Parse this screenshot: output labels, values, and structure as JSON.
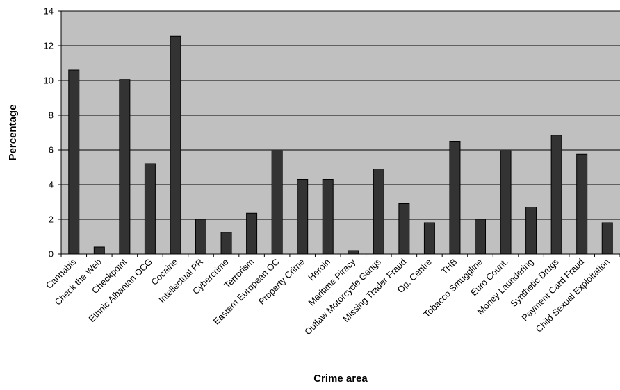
{
  "chart_data": {
    "type": "bar",
    "xlabel": "Crime area",
    "ylabel": "Percentage",
    "ylim": [
      0,
      14
    ],
    "yticks": [
      "0",
      "2",
      "4",
      "6",
      "8",
      "10",
      "12",
      "14"
    ],
    "grid": true,
    "legend": "none",
    "colors": {
      "plot_bg": "#c0c0c0",
      "bar": "#333333",
      "grid": "#000000"
    },
    "categories": [
      "Cannabis",
      "Check the Web",
      "Checkpoint",
      "Ethnic Albanian OCG",
      "Cocaine",
      "Intellectual PR",
      "Cybercrime",
      "Terrorism",
      "Eastern European OC",
      "Property Crime",
      "Heroin",
      "Maritime Piracy",
      "Outlaw Motorcycle Gangs",
      "Missing Trader Fraud",
      "Op. Centre",
      "THB",
      "Tobacco Smuggline",
      "Euro Count.",
      "Money Laundering",
      "Synthetic Drugs",
      "Payment Card Fraud",
      "Child Sexual Exploitation"
    ],
    "values": [
      10.6,
      0.4,
      10.05,
      5.2,
      12.55,
      2.0,
      1.25,
      2.35,
      5.95,
      4.3,
      4.3,
      0.2,
      4.9,
      2.9,
      1.8,
      6.5,
      2.0,
      5.95,
      2.7,
      6.85,
      5.75,
      1.8
    ]
  }
}
